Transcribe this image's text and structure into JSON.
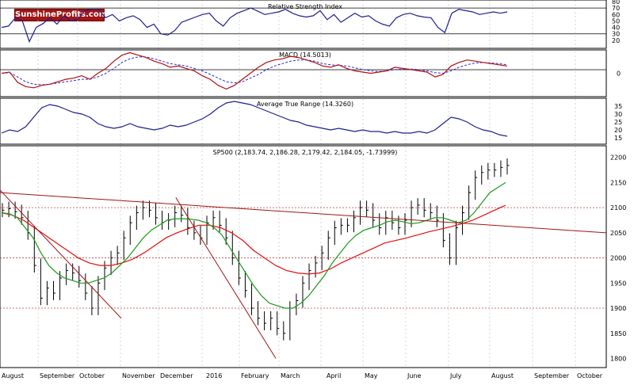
{
  "logo": {
    "part1": "Sunshine",
    "part2": "Profits",
    "part3": ".com"
  },
  "colors": {
    "rsi": "#1f1f8f",
    "macd": "#b01010",
    "signal": "#2a2ad0",
    "atr": "#1f1f8f",
    "price": "#000000",
    "sma_fast": "#1a9a1a",
    "sma_slow": "#e01010",
    "trend": "#a01515",
    "level": "#c04040",
    "grid": "#bbbbbb"
  },
  "chart_data": [
    {
      "type": "line",
      "title": "Relative Strength Index",
      "ylim": [
        10,
        80
      ],
      "yticks": [
        "80",
        "70",
        "60",
        "50",
        "40",
        "30",
        "20"
      ],
      "levels": [
        30,
        70
      ],
      "series": [
        {
          "values": [
            40,
            42,
            55,
            50,
            18,
            40,
            46,
            55,
            45,
            58,
            50,
            52,
            66,
            68,
            68,
            55,
            60,
            50,
            55,
            58,
            52,
            40,
            45,
            30,
            28,
            35,
            48,
            52,
            56,
            60,
            62,
            50,
            42,
            55,
            62,
            66,
            70,
            65,
            60,
            62,
            64,
            68,
            62,
            58,
            56,
            58,
            66,
            52,
            60,
            48,
            55,
            62,
            56,
            58,
            50,
            45,
            42,
            55,
            60,
            62,
            58,
            56,
            55,
            40,
            32,
            62,
            68,
            66,
            64,
            60,
            62,
            64,
            62,
            64
          ]
        }
      ]
    },
    {
      "type": "line",
      "title": "MACD (14.5013)",
      "ylim": [
        -36,
        36
      ],
      "yticks": [
        "0"
      ],
      "series": [
        {
          "values": [
            0,
            2,
            -15,
            -22,
            -24,
            -20,
            -18,
            -14,
            -10,
            -8,
            -4,
            -10,
            0,
            8,
            20,
            30,
            34,
            30,
            26,
            20,
            16,
            10,
            12,
            8,
            4,
            -4,
            -10,
            -20,
            -26,
            -20,
            -10,
            0,
            10,
            18,
            22,
            24,
            28,
            26,
            22,
            18,
            12,
            10,
            14,
            8,
            4,
            2,
            0,
            2,
            4,
            10,
            8,
            6,
            4,
            2,
            -6,
            -2,
            12,
            18,
            22,
            20,
            18,
            16,
            14,
            12
          ]
        },
        {
          "values": [
            0,
            1,
            -6,
            -14,
            -18,
            -19,
            -18,
            -16,
            -14,
            -12,
            -10,
            -10,
            -6,
            0,
            8,
            18,
            24,
            27,
            27,
            24,
            20,
            16,
            14,
            12,
            8,
            4,
            -2,
            -8,
            -14,
            -16,
            -14,
            -8,
            -2,
            6,
            12,
            16,
            20,
            22,
            22,
            20,
            16,
            14,
            13,
            12,
            9,
            6,
            4,
            3,
            4,
            6,
            7,
            7,
            6,
            4,
            1,
            0,
            4,
            10,
            14,
            17,
            18,
            17,
            16,
            14
          ]
        }
      ]
    },
    {
      "type": "line",
      "title": "Average True Range (14.3260)",
      "ylim": [
        12,
        39
      ],
      "yticks": [
        "35",
        "30",
        "25",
        "20",
        "15"
      ],
      "series": [
        {
          "values": [
            18,
            20,
            19,
            22,
            28,
            34,
            36,
            35,
            33,
            31,
            30,
            28,
            24,
            22,
            21,
            22,
            24,
            22,
            21,
            20,
            21,
            23,
            22,
            23,
            25,
            27,
            30,
            34,
            37,
            38,
            37,
            36,
            34,
            32,
            30,
            28,
            26,
            25,
            23,
            22,
            21,
            20,
            21,
            20,
            19,
            20,
            19,
            19,
            18,
            19,
            18,
            18,
            19,
            18,
            20,
            24,
            28,
            27,
            25,
            22,
            20,
            19,
            17,
            16
          ]
        }
      ]
    },
    {
      "type": "bar",
      "title": "SP500 (2,183.74, 2,186.28, 2,179.42, 2,184.05, -1.73999)",
      "ylim": [
        1785,
        2220
      ],
      "yticks": [
        "2200",
        "2150",
        "2100",
        "2050",
        "2000",
        "1950",
        "1900",
        "1850",
        "1800"
      ],
      "xlabels": [
        "August",
        "September",
        "October",
        "November",
        "December",
        "2016",
        "February",
        "March",
        "April",
        "May",
        "June",
        "July",
        "August",
        "September",
        "October"
      ],
      "levels": [
        2100,
        2000,
        1900
      ],
      "price_close": [
        2095,
        2098,
        2092,
        2080,
        2050,
        1985,
        1920,
        1940,
        1930,
        1960,
        1975,
        1970,
        1955,
        1930,
        1900,
        1950,
        1980,
        2000,
        2010,
        2040,
        2070,
        2090,
        2100,
        2095,
        2080,
        2070,
        2075,
        2090,
        2085,
        2060,
        2050,
        2040,
        2070,
        2080,
        2065,
        2040,
        2000,
        1960,
        1935,
        1900,
        1880,
        1870,
        1880,
        1860,
        1850,
        1900,
        1915,
        1950,
        1975,
        1990,
        2010,
        2040,
        2060,
        2065,
        2065,
        2080,
        2100,
        2095,
        2075,
        2060,
        2080,
        2070,
        2060,
        2075,
        2100,
        2105,
        2095,
        2090,
        2075,
        2035,
        2000,
        2060,
        2090,
        2130,
        2160,
        2170,
        2175,
        2175,
        2180,
        2184
      ],
      "sma_fast": [
        2090,
        2088,
        2080,
        2060,
        2040,
        2010,
        1985,
        1970,
        1960,
        1955,
        1950,
        1950,
        1955,
        1960,
        1970,
        1985,
        2000,
        2020,
        2040,
        2055,
        2065,
        2075,
        2078,
        2078,
        2077,
        2075,
        2070,
        2060,
        2045,
        2020,
        1995,
        1970,
        1945,
        1925,
        1910,
        1905,
        1900,
        1900,
        1910,
        1925,
        1945,
        1965,
        1990,
        2010,
        2030,
        2045,
        2055,
        2060,
        2065,
        2072,
        2075,
        2072,
        2068,
        2070,
        2075,
        2080,
        2080,
        2075,
        2070,
        2075,
        2090,
        2110,
        2130,
        2140,
        2150
      ],
      "sma_slow": [
        2090,
        2085,
        2075,
        2060,
        2045,
        2030,
        2015,
        2000,
        1990,
        1985,
        1985,
        1990,
        1998,
        2010,
        2025,
        2040,
        2050,
        2058,
        2065,
        2065,
        2060,
        2050,
        2035,
        2015,
        2000,
        1985,
        1975,
        1970,
        1968,
        1970,
        1978,
        1990,
        2000,
        2010,
        2020,
        2030,
        2035,
        2040,
        2046,
        2052,
        2057,
        2062,
        2068,
        2075,
        2085,
        2095,
        2105
      ],
      "trendlines": [
        {
          "x": [
            0,
            1
          ],
          "y": [
            2130,
            2050
          ]
        },
        {
          "x": [
            0,
            0.2
          ],
          "y": [
            2135,
            1880
          ]
        },
        {
          "x": [
            0.29,
            0.455
          ],
          "y": [
            2120,
            1800
          ]
        }
      ]
    }
  ]
}
